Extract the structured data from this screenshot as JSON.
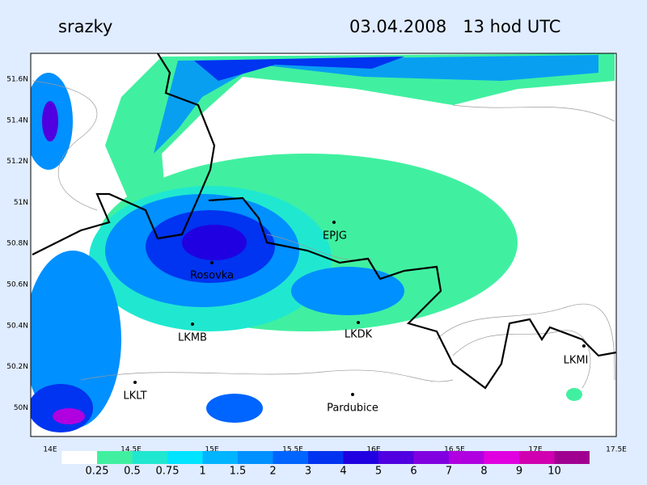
{
  "header": {
    "title": "srazky",
    "datetime": "03.04.2008   13 hod UTC"
  },
  "map": {
    "lat_labels": [
      "51.6N",
      "51.4N",
      "51.2N",
      "51N",
      "50.8N",
      "50.6N",
      "50.4N",
      "50.2N",
      "50N"
    ],
    "lon_labels": [
      "14E",
      "14.5E",
      "15E",
      "15.5E",
      "16E",
      "16.5E",
      "17E",
      "17.5E"
    ],
    "stations": [
      "EPJG",
      "Rosovka",
      "LKMB",
      "LKDK",
      "LKMI",
      "LKLT",
      "Pardubice"
    ]
  },
  "legend": [
    {
      "label": "0.25",
      "color": "#40f0a0"
    },
    {
      "label": "0.5",
      "color": "#20e8d0"
    },
    {
      "label": "0.75",
      "color": "#00e4ff"
    },
    {
      "label": "1",
      "color": "#00b4ff"
    },
    {
      "label": "1.5",
      "color": "#0090ff"
    },
    {
      "label": "2",
      "color": "#0064ff"
    },
    {
      "label": "3",
      "color": "#0034f0"
    },
    {
      "label": "4",
      "color": "#2000e0"
    },
    {
      "label": "5",
      "color": "#5000e0"
    },
    {
      "label": "6",
      "color": "#8000e0"
    },
    {
      "label": "7",
      "color": "#b000e0"
    },
    {
      "label": "8",
      "color": "#e000e0"
    },
    {
      "label": "9",
      "color": "#d000b0"
    },
    {
      "label": "10",
      "color": "#a00090"
    }
  ]
}
